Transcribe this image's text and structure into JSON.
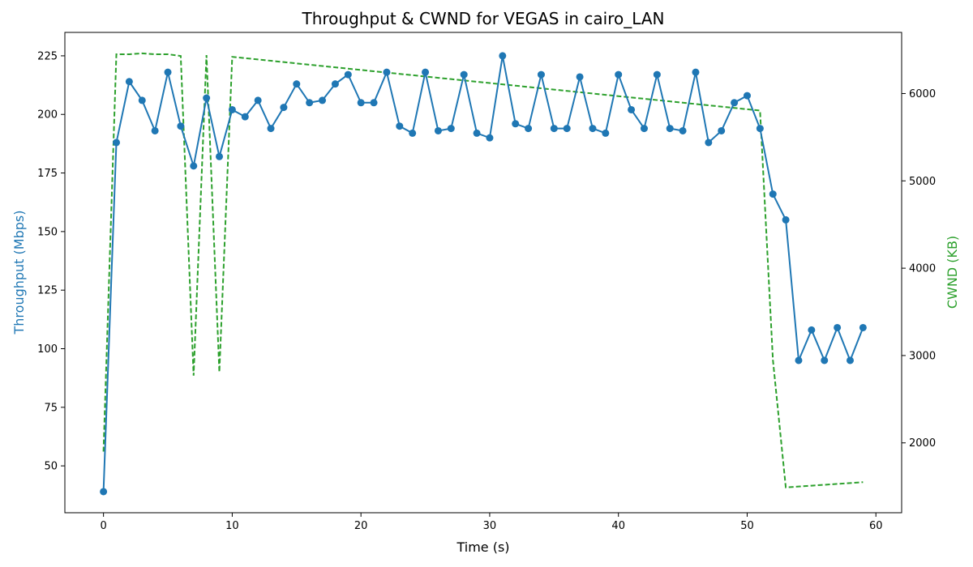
{
  "chart_data": {
    "type": "line",
    "title": "Throughput & CWND for VEGAS in cairo_LAN",
    "xlabel": "Time (s)",
    "ylabel_left": "Throughput (Mbps)",
    "ylabel_right": "CWND (KB)",
    "xlim": [
      -3,
      62
    ],
    "ylim_left": [
      30,
      235
    ],
    "ylim_right": [
      1200,
      6700
    ],
    "xticks": [
      0,
      10,
      20,
      30,
      40,
      50,
      60
    ],
    "yticks_left": [
      50,
      75,
      100,
      125,
      150,
      175,
      200,
      225
    ],
    "yticks_right": [
      2000,
      3000,
      4000,
      5000,
      6000
    ],
    "grid": false,
    "colors": {
      "throughput": "#1f77b4",
      "cwnd": "#2ca02c"
    },
    "series": [
      {
        "axis": "left",
        "style": "solid-with-markers",
        "x": [
          0,
          1,
          2,
          3,
          4,
          5,
          6,
          7,
          8,
          9,
          10,
          11,
          12,
          13,
          14,
          15,
          16,
          17,
          18,
          19,
          20,
          21,
          22,
          23,
          24,
          25,
          26,
          27,
          28,
          29,
          30,
          31,
          32,
          33,
          34,
          35,
          36,
          37,
          38,
          39,
          40,
          41,
          42,
          43,
          44,
          45,
          46,
          47,
          48,
          49,
          50,
          51,
          52,
          53,
          54,
          55,
          56,
          57,
          58,
          59
        ],
        "values": [
          39,
          188,
          214,
          206,
          193,
          218,
          195,
          178,
          207,
          182,
          202,
          199,
          206,
          194,
          203,
          213,
          205,
          206,
          213,
          217,
          205,
          205,
          218,
          195,
          192,
          218,
          193,
          194,
          217,
          192,
          190,
          225,
          196,
          194,
          217,
          194,
          194,
          216,
          194,
          192,
          217,
          202,
          194,
          217,
          194,
          193,
          218,
          188,
          193,
          205,
          208,
          194,
          166,
          155,
          95,
          108,
          95,
          109,
          95,
          109
        ]
      },
      {
        "axis": "right",
        "style": "dashed",
        "x": [
          0,
          1,
          2,
          3,
          4,
          5,
          6,
          7,
          8,
          9,
          10,
          11,
          12,
          13,
          14,
          15,
          16,
          17,
          18,
          19,
          20,
          21,
          22,
          23,
          24,
          25,
          26,
          27,
          28,
          29,
          30,
          31,
          32,
          33,
          34,
          35,
          36,
          37,
          38,
          39,
          40,
          41,
          42,
          43,
          44,
          45,
          46,
          47,
          48,
          49,
          50,
          51,
          52,
          53,
          54,
          55,
          56,
          57,
          58,
          59
        ],
        "values": [
          1900,
          6450,
          6450,
          6460,
          6450,
          6450,
          6430,
          2770,
          6440,
          2810,
          6420,
          6405,
          6390,
          6375,
          6360,
          6345,
          6330,
          6315,
          6300,
          6285,
          6270,
          6255,
          6240,
          6225,
          6210,
          6195,
          6180,
          6165,
          6150,
          6135,
          6120,
          6105,
          6090,
          6075,
          6060,
          6045,
          6030,
          6015,
          6000,
          5985,
          5970,
          5955,
          5940,
          5925,
          5910,
          5895,
          5880,
          5865,
          5850,
          5835,
          5820,
          5805,
          2950,
          1490,
          1500,
          1510,
          1520,
          1530,
          1540,
          1550
        ]
      }
    ]
  }
}
